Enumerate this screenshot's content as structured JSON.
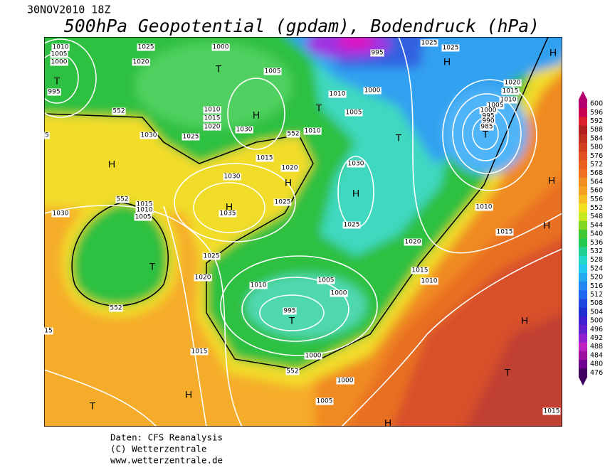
{
  "header": {
    "datetime": "30NOV2010 18Z",
    "title": "500hPa Geopotential (gpdam), Bodendruck (hPa)"
  },
  "colorbar": {
    "levels": [
      600,
      596,
      592,
      588,
      584,
      580,
      576,
      572,
      568,
      564,
      560,
      556,
      552,
      548,
      544,
      540,
      536,
      532,
      528,
      524,
      520,
      516,
      512,
      508,
      504,
      500,
      496,
      492,
      488,
      484,
      480,
      476
    ],
    "colors": [
      "#b4006e",
      "#c80050",
      "#dc2030",
      "#b02020",
      "#c03020",
      "#d04020",
      "#e05020",
      "#e86020",
      "#f07020",
      "#f08c20",
      "#f5a020",
      "#f5c020",
      "#f0e020",
      "#c8e820",
      "#80d820",
      "#40c830",
      "#20c850",
      "#20d090",
      "#20d8c8",
      "#20c8f0",
      "#20a8f0",
      "#2088f0",
      "#2068f0",
      "#2048e0",
      "#2030d0",
      "#4020d0",
      "#6020d0",
      "#9020d0",
      "#c020c0",
      "#a010a0",
      "#700090",
      "#400060"
    ]
  },
  "map": {
    "pressure_centers": [
      "T",
      "H",
      "T",
      "H",
      "T",
      "H",
      "H",
      "T",
      "H",
      "H",
      "H",
      "T",
      "T",
      "H",
      "H",
      "H",
      "T",
      "H",
      "T",
      "H",
      "T"
    ],
    "isobar_labels": [
      "1010",
      "1005",
      "1000",
      "995",
      "1025",
      "1020",
      "1000",
      "1005",
      "1010",
      "1015",
      "1020",
      "1030",
      "1025",
      "1030",
      "1010",
      "1015",
      "1020",
      "1030",
      "995",
      "1025",
      "1025",
      "1010",
      "1000",
      "1005",
      "1020",
      "1015",
      "1010",
      "1005",
      "1000",
      "995",
      "990",
      "985",
      "1030",
      "1025",
      "1035",
      "1025",
      "1020",
      "1010",
      "1015",
      "1015",
      "1010",
      "1025",
      "1020",
      "1010",
      "1005",
      "1000",
      "995",
      "1015",
      "1010",
      "1005",
      "1030",
      "1015",
      "1000",
      "1000",
      "1005",
      "1015",
      "15",
      "5",
      "552",
      "552",
      "552",
      "552",
      "552"
    ]
  },
  "footer": {
    "lines": [
      "Daten: CFS Reanalysis",
      "(C) Wetterzentrale",
      "www.wetterzentrale.de"
    ]
  }
}
